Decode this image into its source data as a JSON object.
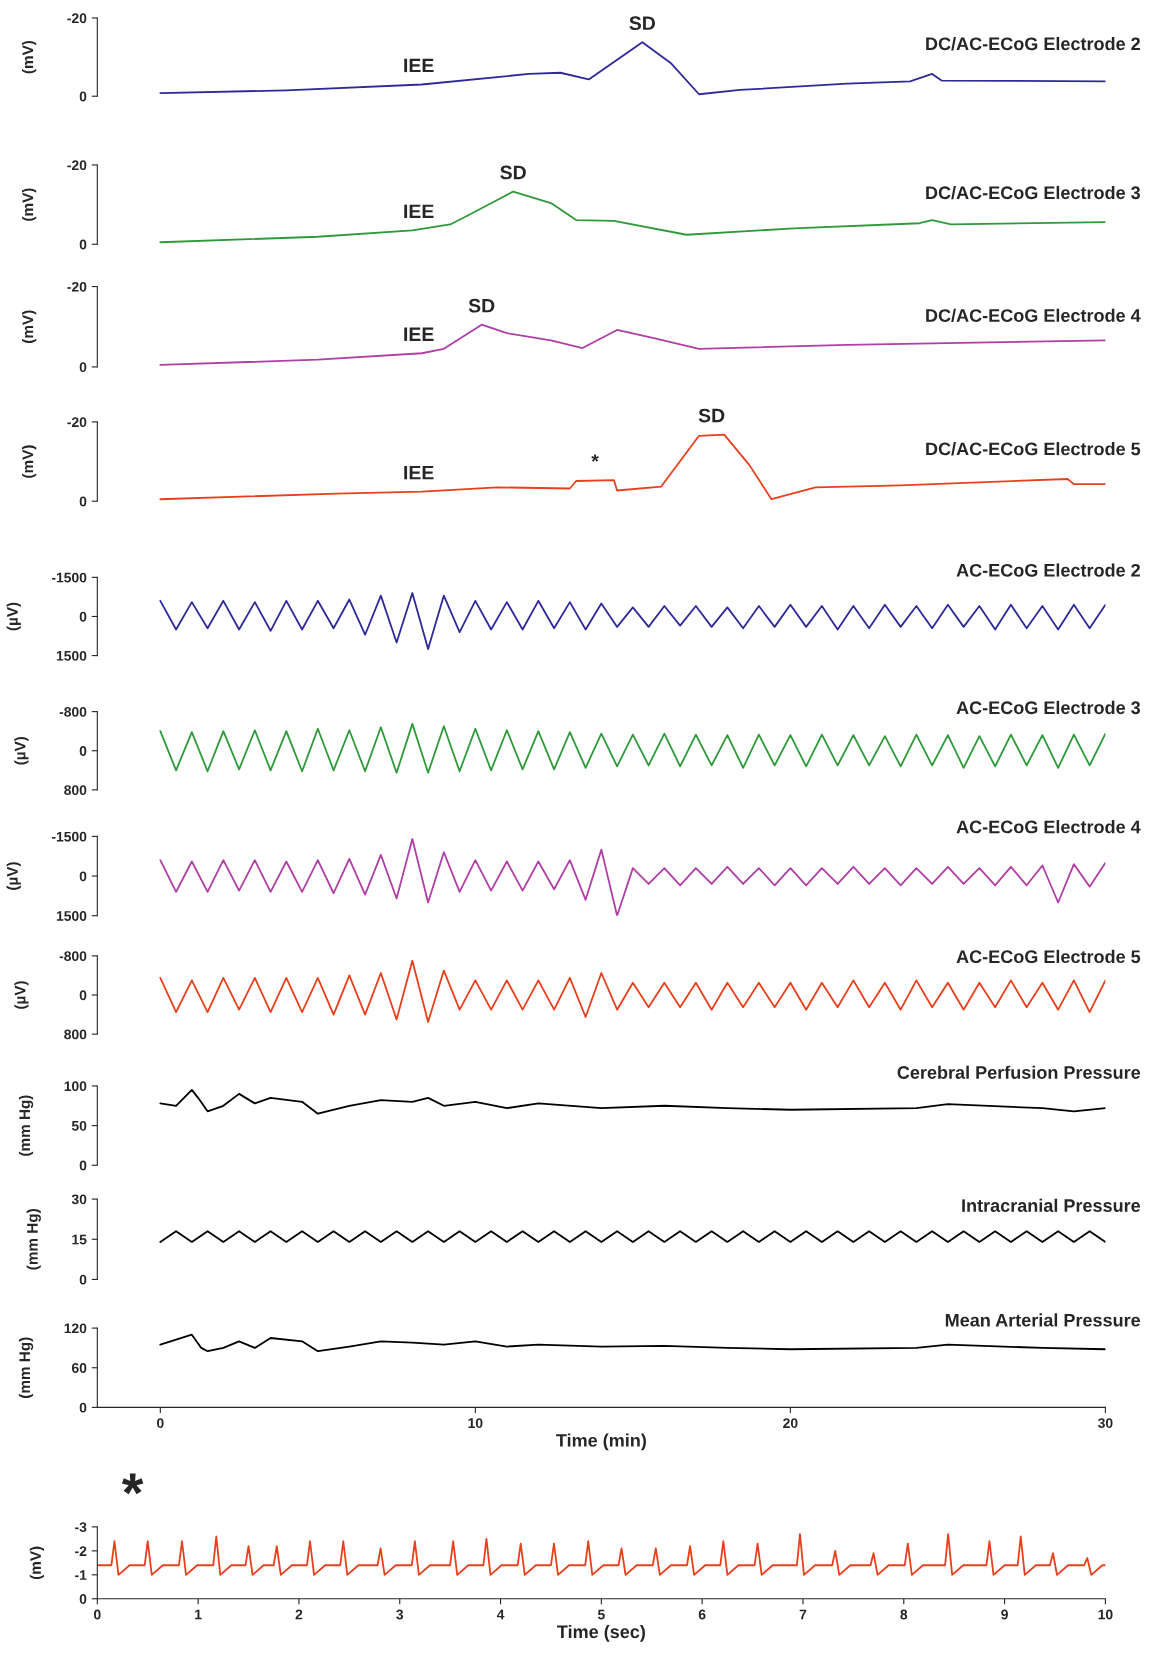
{
  "chart_data": [
    {
      "type": "line",
      "title": "DC/AC-ECoG Electrode 2",
      "ylabel": "(mV)",
      "xlim": [
        -2,
        30
      ],
      "ylim": [
        0,
        -20
      ],
      "yticks": [
        -20,
        0
      ],
      "tick_labels": "y",
      "x": [
        0,
        4,
        8.3,
        11.7,
        12.7,
        13.6,
        15.3,
        16.2,
        17.1,
        18.4,
        21.8,
        23.8,
        24.5,
        24.8,
        30
      ],
      "series": [
        {
          "color": "#2e2a9a",
          "values": [
            -0.8,
            -1.5,
            -3,
            -5.7,
            -6,
            -4.3,
            -13.8,
            -8.5,
            -0.5,
            -1.6,
            -3.2,
            -3.8,
            -5.7,
            -4,
            -3.8
          ]
        }
      ],
      "annotations": [
        {
          "text": "IEE",
          "x": 8.2,
          "y": -3
        },
        {
          "text": "SD",
          "x": 15.3,
          "y": -13.8
        }
      ]
    },
    {
      "type": "line",
      "title": "DC/AC-ECoG Electrode 3",
      "ylabel": "(mV)",
      "xlim": [
        -2,
        30
      ],
      "ylim": [
        0,
        -20
      ],
      "yticks": [
        -20,
        0
      ],
      "tick_labels": "y",
      "x": [
        0,
        5,
        8,
        9.2,
        9.7,
        11.2,
        12.4,
        13.2,
        14.4,
        16.7,
        20.1,
        24.1,
        24.5,
        25.1,
        30
      ],
      "series": [
        {
          "color": "#2e9a3a",
          "values": [
            -0.5,
            -1.9,
            -3.5,
            -5,
            -7,
            -13.3,
            -10.4,
            -6.1,
            -5.9,
            -2.4,
            -4,
            -5.3,
            -6.1,
            -5,
            -5.6
          ]
        }
      ],
      "annotations": [
        {
          "text": "IEE",
          "x": 8.2,
          "y": -3.5
        },
        {
          "text": "SD",
          "x": 11.2,
          "y": -13.3
        }
      ]
    },
    {
      "type": "line",
      "title": "DC/AC-ECoG Electrode 4",
      "ylabel": "(mV)",
      "xlim": [
        -2,
        30
      ],
      "ylim": [
        0,
        -20
      ],
      "yticks": [
        -20,
        0
      ],
      "tick_labels": "y",
      "x": [
        0,
        5,
        8.3,
        9,
        10.2,
        11,
        12.4,
        13.4,
        14.5,
        15.7,
        17.1,
        21.8,
        30
      ],
      "series": [
        {
          "color": "#b03fa6",
          "values": [
            -0.5,
            -1.8,
            -3.4,
            -4.5,
            -10.5,
            -8.4,
            -6.6,
            -4.7,
            -9.2,
            -7.1,
            -4.5,
            -5.5,
            -6.6
          ]
        }
      ],
      "annotations": [
        {
          "text": "IEE",
          "x": 8.2,
          "y": -3.4
        },
        {
          "text": "SD",
          "x": 10.2,
          "y": -10.5
        }
      ]
    },
    {
      "type": "line",
      "title": "DC/AC-ECoG Electrode 5",
      "ylabel": "(mV)",
      "xlim": [
        -2,
        30
      ],
      "ylim": [
        0,
        -20
      ],
      "yticks": [
        -20,
        0
      ],
      "tick_labels": "y",
      "x": [
        0,
        5.6,
        8.3,
        10.7,
        13,
        13.2,
        14.4,
        14.5,
        15.9,
        17.1,
        17.9,
        18.7,
        19.4,
        20.8,
        23.5,
        28.8,
        29,
        30
      ],
      "series": [
        {
          "color": "#e8401c",
          "values": [
            -0.5,
            -1.9,
            -2.4,
            -3.5,
            -3.2,
            -5.1,
            -5.3,
            -2.7,
            -3.7,
            -16.5,
            -16.8,
            -9.1,
            -0.5,
            -3.5,
            -4,
            -5.6,
            -4.3,
            -4.3
          ]
        }
      ],
      "annotations": [
        {
          "text": "IEE",
          "x": 8.2,
          "y": -2.4
        },
        {
          "text": "*",
          "x": 13.8,
          "y": -5.3
        },
        {
          "text": "SD",
          "x": 17.5,
          "y": -16.8
        }
      ]
    },
    {
      "type": "line",
      "title": "AC-ECoG Electrode 2",
      "ylabel": "(µV)",
      "xlim": [
        -2,
        30
      ],
      "ylim": [
        1500,
        -1500
      ],
      "yticks": [
        -1500,
        0,
        1500
      ],
      "tick_labels": "y",
      "x": [
        0,
        0.5,
        1,
        1.5,
        2,
        2.5,
        3,
        3.5,
        4,
        4.5,
        5,
        5.5,
        6,
        6.5,
        7,
        7.5,
        8,
        8.5,
        9,
        9.5,
        10,
        10.5,
        11,
        11.5,
        12,
        12.5,
        13,
        13.5,
        14,
        14.5,
        15,
        15.5,
        16,
        16.5,
        17,
        17.5,
        18,
        18.5,
        19,
        19.5,
        20,
        20.5,
        21,
        21.5,
        22,
        22.5,
        23,
        23.5,
        24,
        24.5,
        25,
        25.5,
        26,
        26.5,
        27,
        27.5,
        28,
        28.5,
        29,
        29.5,
        30
      ],
      "series": [
        {
          "color": "#2e2a9a",
          "values": [
            -600,
            500,
            -550,
            450,
            -600,
            500,
            -550,
            550,
            -600,
            500,
            -600,
            450,
            -650,
            700,
            -800,
            1000,
            -900,
            1250,
            -800,
            600,
            -600,
            500,
            -550,
            500,
            -600,
            450,
            -550,
            500,
            -500,
            400,
            -350,
            400,
            -400,
            350,
            -400,
            400,
            -350,
            450,
            -400,
            400,
            -450,
            400,
            -400,
            500,
            -400,
            450,
            -450,
            400,
            -400,
            450,
            -450,
            400,
            -400,
            500,
            -450,
            450,
            -400,
            500,
            -450,
            450,
            -450
          ]
        }
      ]
    },
    {
      "type": "line",
      "title": "AC-ECoG Electrode 3",
      "ylabel": "(µV)",
      "xlim": [
        -2,
        30
      ],
      "ylim": [
        800,
        -800
      ],
      "yticks": [
        -800,
        0,
        800
      ],
      "tick_labels": "y",
      "x": [
        0,
        0.5,
        1,
        1.5,
        2,
        2.5,
        3,
        3.5,
        4,
        4.5,
        5,
        5.5,
        6,
        6.5,
        7,
        7.5,
        8,
        8.5,
        9,
        9.5,
        10,
        10.5,
        11,
        11.5,
        12,
        12.5,
        13,
        13.5,
        14,
        14.5,
        15,
        15.5,
        16,
        16.5,
        17,
        17.5,
        18,
        18.5,
        19,
        19.5,
        20,
        20.5,
        21,
        21.5,
        22,
        22.5,
        23,
        23.5,
        24,
        24.5,
        25,
        25.5,
        26,
        26.5,
        27,
        27.5,
        28,
        28.5,
        29,
        29.5,
        30
      ],
      "series": [
        {
          "color": "#2e9a3a",
          "values": [
            -400,
            400,
            -380,
            420,
            -400,
            380,
            -420,
            400,
            -400,
            420,
            -450,
            400,
            -420,
            420,
            -480,
            450,
            -550,
            450,
            -500,
            420,
            -450,
            400,
            -420,
            380,
            -400,
            380,
            -380,
            350,
            -350,
            320,
            -330,
            300,
            -350,
            320,
            -330,
            300,
            -320,
            350,
            -330,
            300,
            -320,
            320,
            -330,
            300,
            -320,
            300,
            -300,
            320,
            -330,
            300,
            -320,
            350,
            -300,
            320,
            -330,
            300,
            -320,
            350,
            -330,
            300,
            -350
          ]
        }
      ]
    },
    {
      "type": "line",
      "title": "AC-ECoG Electrode 4",
      "ylabel": "(µV)",
      "xlim": [
        -2,
        30
      ],
      "ylim": [
        1500,
        -1500
      ],
      "yticks": [
        -1500,
        0,
        1500
      ],
      "tick_labels": "y",
      "x": [
        0,
        0.5,
        1,
        1.5,
        2,
        2.5,
        3,
        3.5,
        4,
        4.5,
        5,
        5.5,
        6,
        6.5,
        7,
        7.5,
        8,
        8.5,
        9,
        9.5,
        10,
        10.5,
        11,
        11.5,
        12,
        12.5,
        13,
        13.5,
        14,
        14.5,
        15,
        15.5,
        16,
        16.5,
        17,
        17.5,
        18,
        18.5,
        19,
        19.5,
        20,
        20.5,
        21,
        21.5,
        22,
        22.5,
        23,
        23.5,
        24,
        24.5,
        25,
        25.5,
        26,
        26.5,
        27,
        27.5,
        28,
        28.5,
        29,
        29.5,
        30
      ],
      "series": [
        {
          "color": "#b03fa6",
          "values": [
            -600,
            600,
            -550,
            600,
            -600,
            550,
            -600,
            600,
            -550,
            600,
            -600,
            650,
            -650,
            700,
            -800,
            850,
            -1400,
            1000,
            -900,
            600,
            -600,
            550,
            -550,
            550,
            -550,
            500,
            -600,
            900,
            -1000,
            1500,
            -300,
            300,
            -300,
            350,
            -300,
            300,
            -350,
            300,
            -300,
            350,
            -300,
            350,
            -300,
            300,
            -350,
            300,
            -300,
            350,
            -300,
            300,
            -350,
            300,
            -300,
            350,
            -350,
            350,
            -400,
            1000,
            -450,
            400,
            -500
          ]
        }
      ]
    },
    {
      "type": "line",
      "title": "AC-ECoG Electrode 5",
      "ylabel": "(µV)",
      "xlim": [
        -2,
        30
      ],
      "ylim": [
        800,
        -800
      ],
      "yticks": [
        -800,
        0,
        800
      ],
      "tick_labels": "y",
      "x": [
        0,
        0.5,
        1,
        1.5,
        2,
        2.5,
        3,
        3.5,
        4,
        4.5,
        5,
        5.5,
        6,
        6.5,
        7,
        7.5,
        8,
        8.5,
        9,
        9.5,
        10,
        10.5,
        11,
        11.5,
        12,
        12.5,
        13,
        13.5,
        14,
        14.5,
        15,
        15.5,
        16,
        16.5,
        17,
        17.5,
        18,
        18.5,
        19,
        19.5,
        20,
        20.5,
        21,
        21.5,
        22,
        22.5,
        23,
        23.5,
        24,
        24.5,
        25,
        25.5,
        26,
        26.5,
        27,
        27.5,
        28,
        28.5,
        29,
        29.5,
        30
      ],
      "series": [
        {
          "color": "#e8401c",
          "values": [
            -350,
            350,
            -300,
            350,
            -350,
            300,
            -350,
            350,
            -350,
            350,
            -350,
            400,
            -400,
            400,
            -450,
            500,
            -700,
            550,
            -500,
            300,
            -300,
            300,
            -300,
            300,
            -300,
            300,
            -350,
            450,
            -450,
            300,
            -250,
            250,
            -250,
            250,
            -250,
            300,
            -250,
            250,
            -250,
            250,
            -250,
            300,
            -250,
            250,
            -300,
            250,
            -250,
            300,
            -300,
            250,
            -250,
            300,
            -250,
            250,
            -300,
            250,
            -250,
            300,
            -300,
            350,
            -300
          ]
        }
      ]
    },
    {
      "type": "line",
      "title": "Cerebral Perfusion Pressure",
      "ylabel": "(mm Hg)",
      "xlim": [
        -2,
        30
      ],
      "ylim": [
        0,
        100
      ],
      "yticks": [
        0,
        50,
        100
      ],
      "tick_labels": "y",
      "x": [
        0,
        0.5,
        1,
        1.2,
        1.5,
        2,
        2.5,
        3,
        3.5,
        4.5,
        5,
        6,
        7,
        8,
        8.5,
        9,
        10,
        11,
        12,
        14,
        16,
        18,
        20,
        24,
        25,
        28,
        29,
        30
      ],
      "series": [
        {
          "color": "#000000",
          "values": [
            78,
            75,
            95,
            85,
            68,
            75,
            90,
            78,
            85,
            80,
            65,
            75,
            82,
            80,
            85,
            75,
            80,
            72,
            78,
            72,
            75,
            72,
            70,
            72,
            77,
            72,
            68,
            72
          ]
        }
      ]
    },
    {
      "type": "line",
      "title": "Intracranial Pressure",
      "ylabel": "(mm Hg)",
      "xlim": [
        -2,
        30
      ],
      "ylim": [
        0,
        30
      ],
      "yticks": [
        0,
        15,
        30
      ],
      "tick_labels": "y",
      "x": [
        0,
        0.5,
        1,
        1.5,
        2,
        2.5,
        3,
        3.5,
        4,
        4.5,
        5,
        5.5,
        6,
        6.5,
        7,
        7.5,
        8,
        8.5,
        9,
        9.5,
        10,
        10.5,
        11,
        11.5,
        12,
        12.5,
        13,
        13.5,
        14,
        14.5,
        15,
        15.5,
        16,
        16.5,
        17,
        17.5,
        18,
        18.5,
        19,
        19.5,
        20,
        20.5,
        21,
        21.5,
        22,
        22.5,
        23,
        23.5,
        24,
        24.5,
        25,
        25.5,
        26,
        26.5,
        27,
        27.5,
        28,
        28.5,
        29,
        29.5,
        30
      ],
      "series": [
        {
          "color": "#000000",
          "values": [
            14,
            18,
            14,
            18,
            14,
            18,
            14,
            18,
            14,
            18,
            14,
            18,
            14,
            18,
            14,
            18,
            14,
            18,
            14,
            18,
            14,
            18,
            14,
            18,
            14,
            18,
            14,
            18,
            14,
            18,
            14,
            18,
            14,
            18,
            14,
            18,
            14,
            18,
            14,
            18,
            14,
            18,
            14,
            18,
            14,
            18,
            14,
            18,
            14,
            18,
            14,
            18,
            14,
            18,
            14,
            18,
            14,
            18,
            14,
            18,
            14
          ]
        }
      ]
    },
    {
      "type": "line",
      "title": "Mean Arterial Pressure",
      "ylabel": "(mm Hg)",
      "xlabel": "Time (min)",
      "xlim": [
        -2,
        30
      ],
      "xticks": [
        0,
        10,
        20,
        30
      ],
      "ylim": [
        0,
        120
      ],
      "yticks": [
        0,
        60,
        120
      ],
      "x": [
        0,
        1,
        1.3,
        1.5,
        2,
        2.5,
        3,
        3.5,
        4.5,
        5,
        6,
        7,
        8,
        9,
        10,
        11,
        12,
        14,
        16,
        18,
        20,
        24,
        25,
        28,
        30
      ],
      "series": [
        {
          "color": "#000000",
          "values": [
            95,
            110,
            90,
            85,
            90,
            100,
            90,
            105,
            100,
            85,
            92,
            100,
            98,
            95,
            100,
            92,
            95,
            92,
            93,
            90,
            88,
            90,
            95,
            90,
            88
          ]
        }
      ]
    },
    {
      "type": "line",
      "ylabel": "(mV)",
      "xlabel": "Time (sec)",
      "xlim": [
        0,
        10
      ],
      "xticks": [
        0,
        1,
        2,
        3,
        4,
        5,
        6,
        7,
        8,
        9,
        10
      ],
      "ylim": [
        0,
        -3
      ],
      "yticks": [
        -3,
        -2,
        -1,
        0
      ],
      "annotations": [
        "*"
      ],
      "x": [
        0,
        0.14,
        0.17,
        0.21,
        0.32,
        0.47,
        0.5,
        0.54,
        0.65,
        0.81,
        0.84,
        0.88,
        0.99,
        1.15,
        1.18,
        1.22,
        1.33,
        1.47,
        1.5,
        1.54,
        1.65,
        1.75,
        1.78,
        1.82,
        1.93,
        2.08,
        2.11,
        2.15,
        2.26,
        2.41,
        2.44,
        2.48,
        2.59,
        2.78,
        2.81,
        2.85,
        2.96,
        3.12,
        3.15,
        3.19,
        3.3,
        3.5,
        3.53,
        3.57,
        3.68,
        3.83,
        3.86,
        3.9,
        4.01,
        4.17,
        4.2,
        4.24,
        4.35,
        4.5,
        4.53,
        4.57,
        4.68,
        4.84,
        4.87,
        4.91,
        5.02,
        5.17,
        5.2,
        5.24,
        5.35,
        5.51,
        5.54,
        5.58,
        5.69,
        5.85,
        5.88,
        5.92,
        6.03,
        6.18,
        6.21,
        6.25,
        6.36,
        6.52,
        6.55,
        6.59,
        6.7,
        6.94,
        6.97,
        7.01,
        7.12,
        7.29,
        7.32,
        7.36,
        7.47,
        7.67,
        7.7,
        7.74,
        7.85,
        8.01,
        8.04,
        8.08,
        8.19,
        8.41,
        8.44,
        8.48,
        8.59,
        8.82,
        8.85,
        8.89,
        9.0,
        9.13,
        9.16,
        9.2,
        9.31,
        9.45,
        9.48,
        9.52,
        9.63,
        9.79,
        9.82,
        9.86,
        9.97,
        10
      ],
      "series": [
        {
          "color": "#e8401c",
          "values": [
            -1.4,
            -1.4,
            -2.4,
            -1.0,
            -1.4,
            -1.4,
            -2.4,
            -1.0,
            -1.4,
            -1.4,
            -2.4,
            -1.0,
            -1.4,
            -1.4,
            -2.6,
            -1.0,
            -1.4,
            -1.4,
            -2.2,
            -1.0,
            -1.4,
            -1.4,
            -2.2,
            -1.0,
            -1.4,
            -1.4,
            -2.4,
            -1.0,
            -1.4,
            -1.4,
            -2.4,
            -1.0,
            -1.4,
            -1.4,
            -2.1,
            -1.0,
            -1.4,
            -1.4,
            -2.4,
            -1.0,
            -1.4,
            -1.4,
            -2.4,
            -1.0,
            -1.4,
            -1.4,
            -2.5,
            -1.0,
            -1.4,
            -1.4,
            -2.3,
            -1.0,
            -1.4,
            -1.4,
            -2.3,
            -1.0,
            -1.4,
            -1.4,
            -2.4,
            -1.0,
            -1.4,
            -1.4,
            -2.1,
            -1.0,
            -1.4,
            -1.4,
            -2.1,
            -1.0,
            -1.4,
            -1.4,
            -2.2,
            -1.0,
            -1.4,
            -1.4,
            -2.4,
            -1.0,
            -1.4,
            -1.4,
            -2.3,
            -1.0,
            -1.4,
            -1.4,
            -2.7,
            -1.0,
            -1.4,
            -1.4,
            -2.0,
            -1.0,
            -1.4,
            -1.4,
            -1.9,
            -1.0,
            -1.4,
            -1.4,
            -2.3,
            -1.0,
            -1.4,
            -1.4,
            -2.7,
            -1.0,
            -1.4,
            -1.4,
            -2.4,
            -1.0,
            -1.4,
            -1.4,
            -2.6,
            -1.0,
            -1.4,
            -1.4,
            -1.9,
            -1.0,
            -1.4,
            -1.4,
            -1.7,
            -1.0,
            -1.4,
            -1.4
          ]
        }
      ]
    }
  ]
}
